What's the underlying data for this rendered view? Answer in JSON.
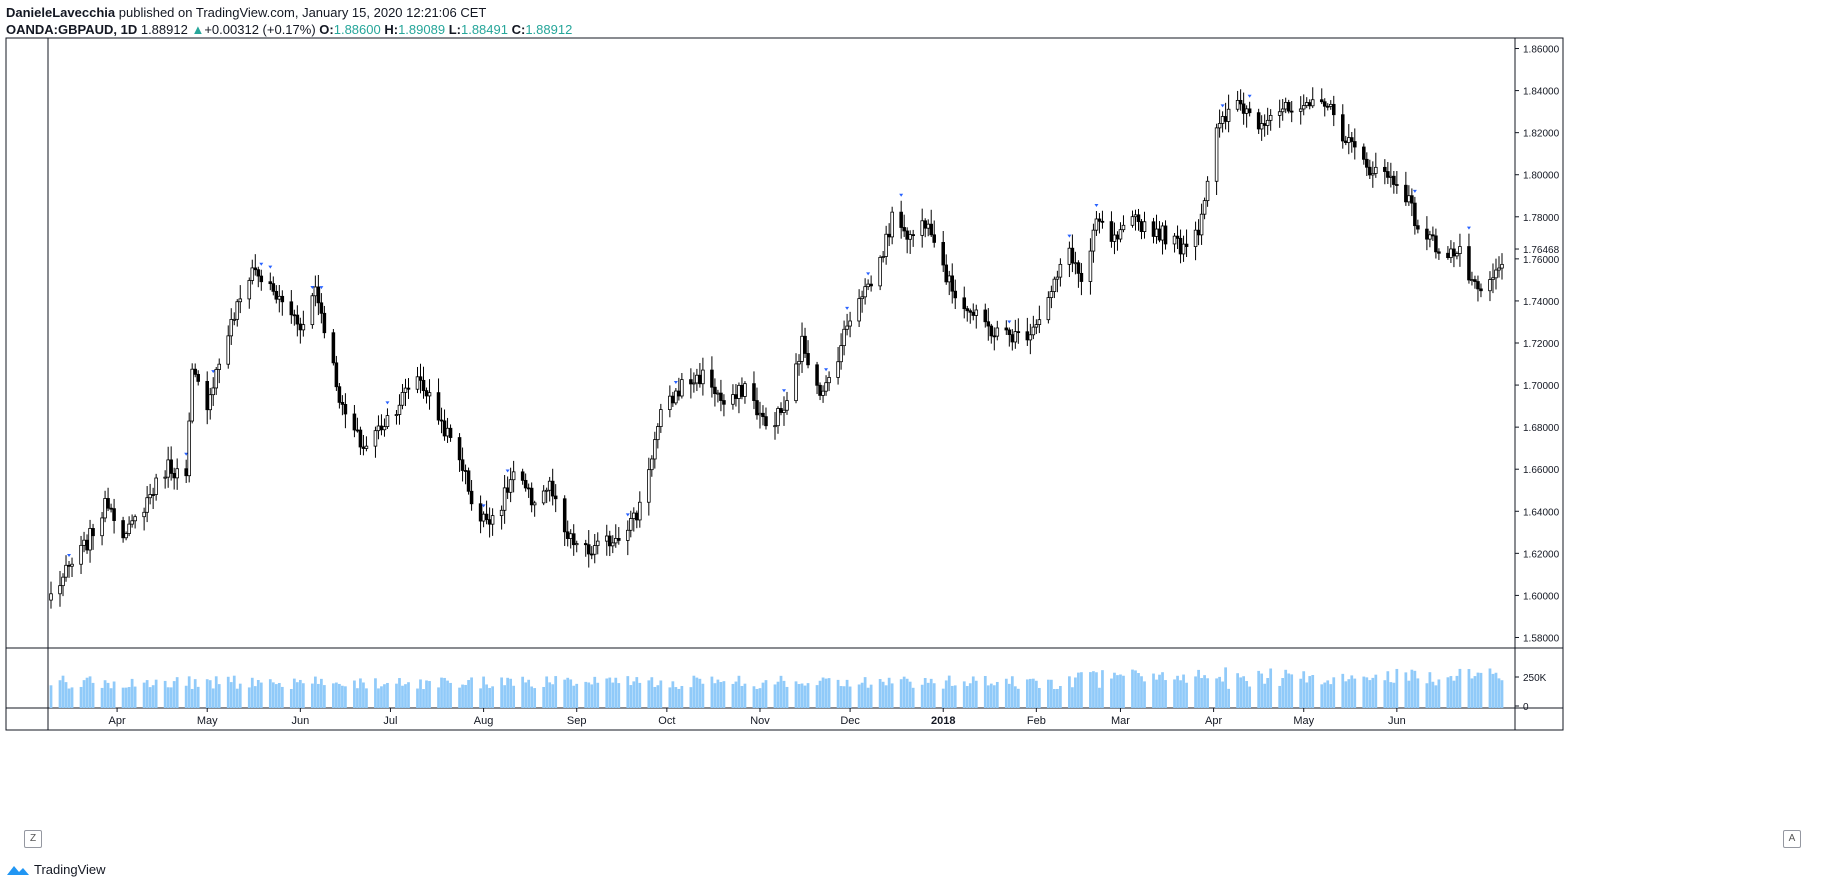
{
  "header": {
    "author": "DanieleLavecchia",
    "published_text": "published on TradingView.com, January 15, 2020 12:21:06 CET",
    "symbol": "OANDA:GBPAUD, 1D",
    "last": "1.88912",
    "change": "+0.00312 (+0.17%)",
    "o_label": "O:",
    "o": "1.88600",
    "h_label": "H:",
    "h": "1.89089",
    "l_label": "L:",
    "l": "1.88491",
    "c_label": "C:",
    "c": "1.88912",
    "arrow": "▲"
  },
  "brand": {
    "name": "TradingView",
    "icon": "tradingview-logo-icon"
  },
  "corner": {
    "left": "Z",
    "right": "A"
  },
  "colors": {
    "up_body": "#ffffff",
    "down_body": "#000000",
    "wick": "#000000",
    "volume": "#90caf9",
    "marker": "#2962ff",
    "grid": "#e0e3eb"
  },
  "chart_data": {
    "type": "candlestick",
    "title": "",
    "xlabel": "",
    "ylabel": "",
    "ylim": [
      1.575,
      1.865
    ],
    "y_ticks": [
      "1.86000",
      "1.84000",
      "1.82000",
      "1.80000",
      "1.78000",
      "1.76000",
      "1.74000",
      "1.72000",
      "1.70000",
      "1.68000",
      "1.66000",
      "1.64000",
      "1.62000",
      "1.60000",
      "1.58000"
    ],
    "last_price_label": "1.76468",
    "x_ticks": [
      {
        "label": "Apr",
        "bold": false
      },
      {
        "label": "May",
        "bold": false
      },
      {
        "label": "Jun",
        "bold": false
      },
      {
        "label": "Jul",
        "bold": false
      },
      {
        "label": "Aug",
        "bold": false
      },
      {
        "label": "Sep",
        "bold": false
      },
      {
        "label": "Oct",
        "bold": false
      },
      {
        "label": "Nov",
        "bold": false
      },
      {
        "label": "Dec",
        "bold": false
      },
      {
        "label": "2018",
        "bold": true
      },
      {
        "label": "Feb",
        "bold": false
      },
      {
        "label": "Mar",
        "bold": false
      },
      {
        "label": "Apr",
        "bold": false
      },
      {
        "label": "May",
        "bold": false
      },
      {
        "label": "Jun",
        "bold": false
      }
    ],
    "volume_ticks": [
      "250K",
      "0"
    ],
    "close_path": [
      [
        "2017-03-10",
        1.6
      ],
      [
        "2017-03-22",
        1.625
      ],
      [
        "2017-03-29",
        1.645
      ],
      [
        "2017-04-04",
        1.628
      ],
      [
        "2017-04-12",
        1.648
      ],
      [
        "2017-04-18",
        1.662
      ],
      [
        "2017-04-24",
        1.655
      ],
      [
        "2017-04-26",
        1.705
      ],
      [
        "2017-05-01",
        1.692
      ],
      [
        "2017-05-08",
        1.725
      ],
      [
        "2017-05-16",
        1.756
      ],
      [
        "2017-05-24",
        1.742
      ],
      [
        "2017-06-02",
        1.728
      ],
      [
        "2017-06-06",
        1.747
      ],
      [
        "2017-06-10",
        1.722
      ],
      [
        "2017-06-15",
        1.688
      ],
      [
        "2017-06-22",
        1.67
      ],
      [
        "2017-07-03",
        1.69
      ],
      [
        "2017-07-10",
        1.705
      ],
      [
        "2017-07-16",
        1.688
      ],
      [
        "2017-07-25",
        1.662
      ],
      [
        "2017-07-30",
        1.635
      ],
      [
        "2017-08-06",
        1.64
      ],
      [
        "2017-08-11",
        1.658
      ],
      [
        "2017-08-17",
        1.645
      ],
      [
        "2017-08-23",
        1.652
      ],
      [
        "2017-08-28",
        1.628
      ],
      [
        "2017-09-05",
        1.62
      ],
      [
        "2017-09-13",
        1.627
      ],
      [
        "2017-09-21",
        1.638
      ],
      [
        "2017-09-29",
        1.685
      ],
      [
        "2017-10-06",
        1.7
      ],
      [
        "2017-10-14",
        1.705
      ],
      [
        "2017-10-21",
        1.688
      ],
      [
        "2017-10-27",
        1.7
      ],
      [
        "2017-11-03",
        1.68
      ],
      [
        "2017-11-10",
        1.69
      ],
      [
        "2017-11-15",
        1.72
      ],
      [
        "2017-11-22",
        1.695
      ],
      [
        "2017-11-27",
        1.715
      ],
      [
        "2017-12-03",
        1.742
      ],
      [
        "2017-12-09",
        1.75
      ],
      [
        "2017-12-16",
        1.783
      ],
      [
        "2017-12-21",
        1.77
      ],
      [
        "2017-12-27",
        1.78
      ],
      [
        "2018-01-03",
        1.748
      ],
      [
        "2018-01-11",
        1.733
      ],
      [
        "2018-01-18",
        1.725
      ],
      [
        "2018-01-28",
        1.723
      ],
      [
        "2018-02-04",
        1.737
      ],
      [
        "2018-02-12",
        1.765
      ],
      [
        "2018-02-17",
        1.745
      ],
      [
        "2018-02-21",
        1.778
      ],
      [
        "2018-02-27",
        1.768
      ],
      [
        "2018-03-06",
        1.778
      ],
      [
        "2018-03-15",
        1.772
      ],
      [
        "2018-03-21",
        1.766
      ],
      [
        "2018-03-27",
        1.775
      ],
      [
        "2018-04-02",
        1.82
      ],
      [
        "2018-04-09",
        1.835
      ],
      [
        "2018-04-16",
        1.825
      ],
      [
        "2018-04-22",
        1.832
      ],
      [
        "2018-04-30",
        1.828
      ],
      [
        "2018-05-07",
        1.838
      ],
      [
        "2018-05-13",
        1.822
      ],
      [
        "2018-05-21",
        1.805
      ],
      [
        "2018-05-28",
        1.8
      ],
      [
        "2018-06-03",
        1.795
      ],
      [
        "2018-06-08",
        1.775
      ],
      [
        "2018-06-15",
        1.765
      ],
      [
        "2018-06-22",
        1.762
      ],
      [
        "2018-06-28",
        1.742
      ],
      [
        "2018-07-04",
        1.752
      ],
      [
        "2018-07-08",
        1.762
      ]
    ]
  }
}
